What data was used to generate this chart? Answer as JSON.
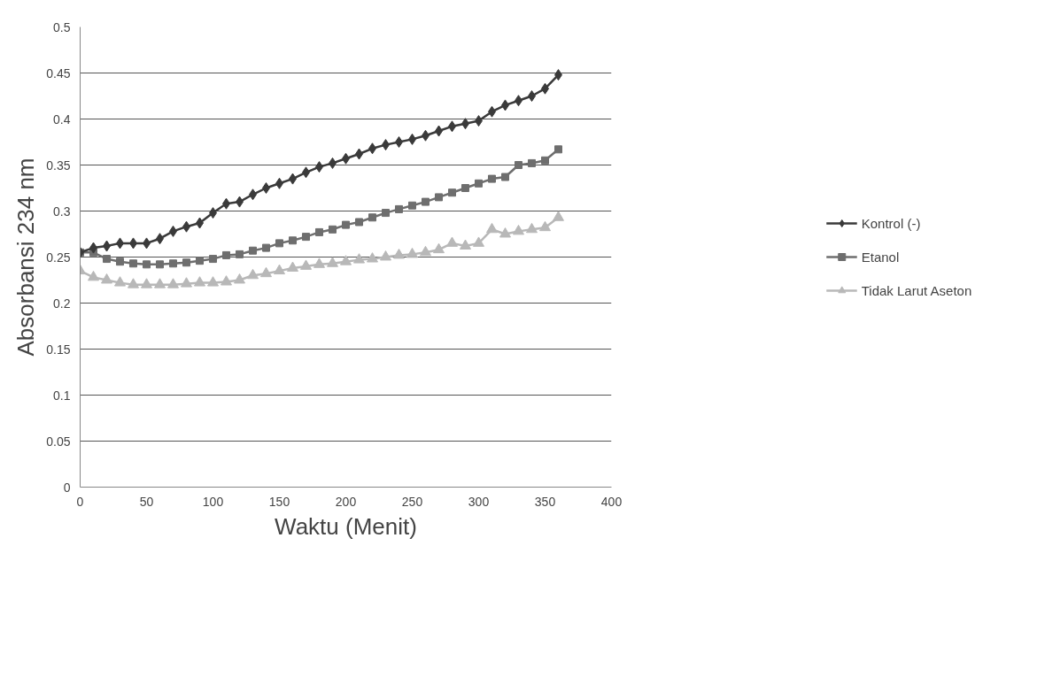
{
  "chart_data": {
    "type": "line",
    "xlabel": "Waktu (Menit)",
    "ylabel": "Absorbansi 234 nm",
    "x": [
      0,
      10,
      20,
      30,
      40,
      50,
      60,
      70,
      80,
      90,
      100,
      110,
      120,
      130,
      140,
      150,
      160,
      170,
      180,
      190,
      200,
      210,
      220,
      230,
      240,
      250,
      260,
      270,
      280,
      290,
      300,
      310,
      320,
      330,
      340,
      350,
      360
    ],
    "series": [
      {
        "name": "Kontrol (-)",
        "color": "#3a3a3a",
        "marker": "diamond",
        "values": [
          0.255,
          0.26,
          0.262,
          0.265,
          0.265,
          0.265,
          0.27,
          0.278,
          0.283,
          0.287,
          0.298,
          0.308,
          0.31,
          0.318,
          0.325,
          0.33,
          0.335,
          0.342,
          0.348,
          0.352,
          0.357,
          0.362,
          0.368,
          0.372,
          0.375,
          0.378,
          0.382,
          0.387,
          0.392,
          0.395,
          0.398,
          0.408,
          0.415,
          0.42,
          0.425,
          0.433,
          0.448
        ]
      },
      {
        "name": "Etanol",
        "color": "#6e6e6e",
        "marker": "square",
        "values": [
          0.255,
          0.255,
          0.248,
          0.245,
          0.243,
          0.242,
          0.242,
          0.243,
          0.244,
          0.246,
          0.248,
          0.252,
          0.253,
          0.257,
          0.26,
          0.265,
          0.268,
          0.272,
          0.277,
          0.28,
          0.285,
          0.288,
          0.293,
          0.298,
          0.302,
          0.306,
          0.31,
          0.315,
          0.32,
          0.325,
          0.33,
          0.335,
          0.337,
          0.35,
          0.352,
          0.355,
          0.367
        ]
      },
      {
        "name": "Tidak Larut Aseton",
        "color": "#b8b8b8",
        "marker": "triangle",
        "values": [
          0.235,
          0.228,
          0.225,
          0.222,
          0.22,
          0.22,
          0.22,
          0.22,
          0.221,
          0.222,
          0.222,
          0.223,
          0.225,
          0.23,
          0.232,
          0.235,
          0.238,
          0.24,
          0.242,
          0.243,
          0.245,
          0.247,
          0.248,
          0.25,
          0.252,
          0.253,
          0.255,
          0.258,
          0.265,
          0.262,
          0.265,
          0.28,
          0.275,
          0.278,
          0.28,
          0.282,
          0.293
        ]
      }
    ],
    "xlim": [
      0,
      400
    ],
    "xticks": [
      0,
      50,
      100,
      150,
      200,
      250,
      300,
      350,
      400
    ],
    "ylim": [
      0,
      0.5
    ],
    "yticks": [
      0,
      0.05,
      0.1,
      0.15,
      0.2,
      0.25,
      0.3,
      0.35,
      0.4,
      0.45,
      0.5
    ],
    "grid": "y",
    "legend": "right",
    "line_style": "solid"
  }
}
